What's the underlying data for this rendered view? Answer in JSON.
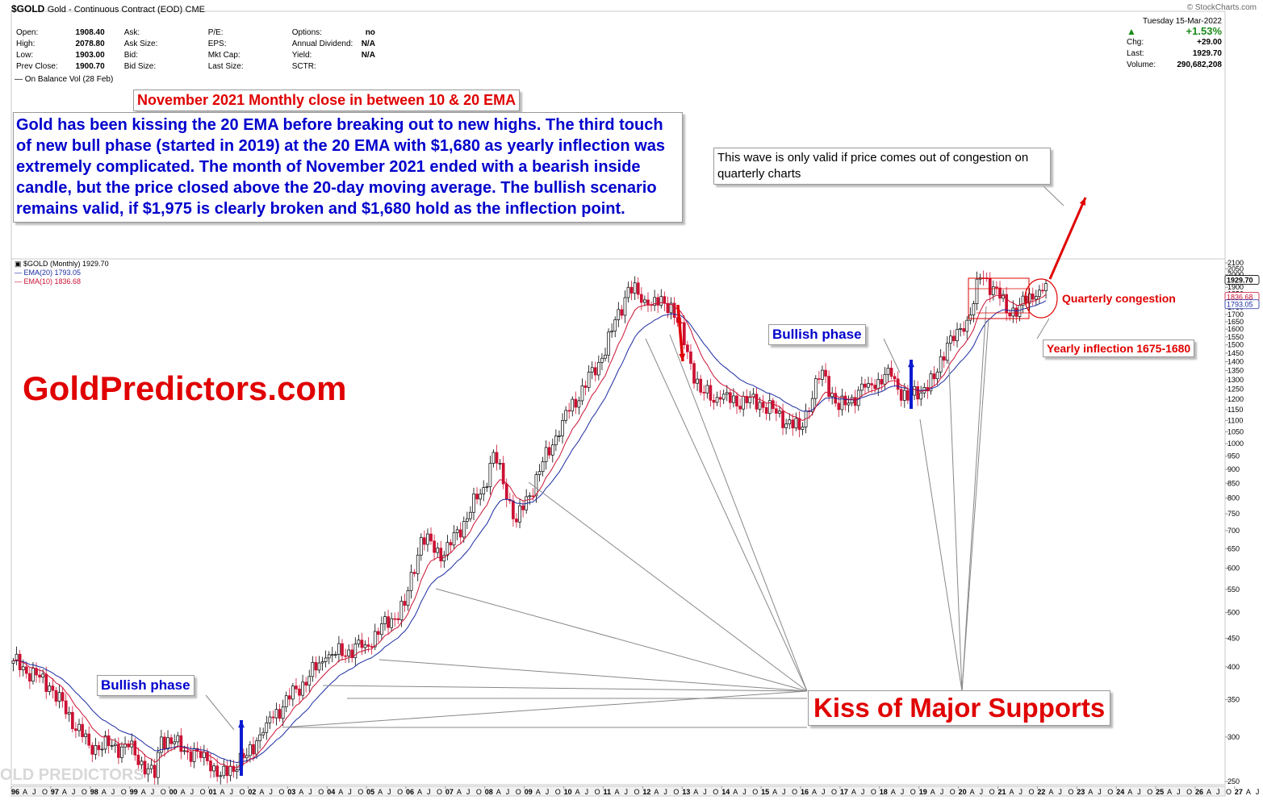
{
  "header": {
    "ticker": "$GOLD",
    "description": "Gold - Continuous Contract (EOD)",
    "exchange": "CME",
    "credit": "© StockCharts.com",
    "quote": [
      [
        {
          "l": "Open:",
          "v": "1908.40"
        },
        {
          "l": "Ask:",
          "v": ""
        },
        {
          "l": "P/E:",
          "v": ""
        },
        {
          "l": "Options:",
          "v": "no"
        }
      ],
      [
        {
          "l": "High:",
          "v": "2078.80"
        },
        {
          "l": "Ask Size:",
          "v": ""
        },
        {
          "l": "EPS:",
          "v": ""
        },
        {
          "l": "Annual Dividend:",
          "v": "N/A"
        }
      ],
      [
        {
          "l": "Low:",
          "v": "1903.00"
        },
        {
          "l": "Bid:",
          "v": ""
        },
        {
          "l": "Mkt Cap:",
          "v": ""
        },
        {
          "l": "Yield:",
          "v": "N/A"
        }
      ],
      [
        {
          "l": "Prev Close:",
          "v": "1900.70"
        },
        {
          "l": "Bid Size:",
          "v": ""
        },
        {
          "l": "Last Size:",
          "v": ""
        },
        {
          "l": "SCTR:",
          "v": ""
        }
      ]
    ],
    "date": "Tuesday  15-Mar-2022",
    "pct": "+1.53%",
    "chg_label": "Chg:",
    "chg": "+29.00",
    "last_label": "Last:",
    "last": "1929.70",
    "vol_label": "Volume:",
    "volume": "290,682,208",
    "up_color": "#1a8a1a",
    "obv": "On Balance Vol (28 Feb)"
  },
  "legend": {
    "main": "$GOLD (Monthly) 1929.70",
    "ema20": "EMA(20) 1793.05",
    "ema10": "EMA(10) 1836.68"
  },
  "annotations": {
    "title": "November 2021 Monthly close in between 10 & 20 EMA",
    "paragraph": "Gold has been kissing the 20 EMA before breaking out to new highs. The third touch of new bull phase (started in 2019) at the 20 EMA with $1,680 as yearly inflection was extremely complicated. The month of November 2021 ended with a bearish inside candle, but the price closed above the 20-day moving average. The bullish scenario remains valid, if $1,975 is clearly broken and $1,680 hold as the inflection point.",
    "wave": "This wave is only valid if price comes out of congestion on quarterly charts",
    "bullish_phase": "Bullish phase",
    "yearly_inflection": "Yearly inflection 1675-1680",
    "kiss": "Kiss of Major Supports",
    "quarterly": "Quarterly congestion",
    "brand": "GoldPredictors.com",
    "watermark": "OLD PREDICTORS"
  },
  "chart_data": {
    "type": "candlestick",
    "title": "$GOLD (Monthly)",
    "scale": "log",
    "ylim": [
      250,
      2100
    ],
    "y_ticks": [
      250,
      300,
      350,
      400,
      450,
      500,
      550,
      600,
      650,
      700,
      750,
      800,
      850,
      900,
      950,
      1000,
      1050,
      1100,
      1150,
      1200,
      1250,
      1300,
      1350,
      1400,
      1450,
      1500,
      1550,
      1600,
      1650,
      1700,
      1750,
      1800,
      1850,
      1900,
      1950,
      2000,
      2050,
      2100
    ],
    "x_range": [
      "1996-01",
      "2027-12"
    ],
    "year_labels": [
      "96",
      "97",
      "98",
      "99",
      "00",
      "01",
      "02",
      "03",
      "04",
      "05",
      "06",
      "07",
      "08",
      "09",
      "10",
      "11",
      "12",
      "13",
      "14",
      "15",
      "16",
      "17",
      "18",
      "19",
      "20",
      "21",
      "22",
      "23",
      "24",
      "25",
      "26",
      "27"
    ],
    "price_labels": [
      "1929.70",
      "1836.68",
      "1793.05"
    ],
    "anchors": [
      [
        "1996-01",
        410
      ],
      [
        "1996-12",
        370
      ],
      [
        "1997-12",
        290
      ],
      [
        "1998-12",
        288
      ],
      [
        "1999-08",
        254
      ],
      [
        "1999-10",
        300
      ],
      [
        "2000-12",
        272
      ],
      [
        "2001-04",
        256
      ],
      [
        "2001-12",
        278
      ],
      [
        "2002-06",
        318
      ],
      [
        "2003-12",
        415
      ],
      [
        "2004-12",
        438
      ],
      [
        "2005-12",
        515
      ],
      [
        "2006-05",
        680
      ],
      [
        "2006-12",
        632
      ],
      [
        "2007-12",
        835
      ],
      [
        "2008-03",
        965
      ],
      [
        "2008-10",
        725
      ],
      [
        "2009-12",
        1100
      ],
      [
        "2010-12",
        1420
      ],
      [
        "2011-08",
        1900
      ],
      [
        "2012-02",
        1770
      ],
      [
        "2012-09",
        1780
      ],
      [
        "2013-06",
        1235
      ],
      [
        "2013-12",
        1200
      ],
      [
        "2014-12",
        1185
      ],
      [
        "2015-12",
        1060
      ],
      [
        "2016-07",
        1352
      ],
      [
        "2016-12",
        1150
      ],
      [
        "2017-09",
        1280
      ],
      [
        "2017-12",
        1302
      ],
      [
        "2018-04",
        1318
      ],
      [
        "2018-09",
        1195
      ],
      [
        "2019-05",
        1305
      ],
      [
        "2019-09",
        1510
      ],
      [
        "2020-02",
        1585
      ],
      [
        "2020-07",
        1975
      ],
      [
        "2020-12",
        1895
      ],
      [
        "2021-03",
        1710
      ],
      [
        "2021-12",
        1830
      ],
      [
        "2022-03",
        1930
      ]
    ],
    "ema20_last": 1793.05,
    "ema10_last": 1836.68,
    "colors": {
      "up": "#000000",
      "down": "#cc1133",
      "ema20": "#1a2aa0",
      "ema10": "#cc1133"
    }
  }
}
